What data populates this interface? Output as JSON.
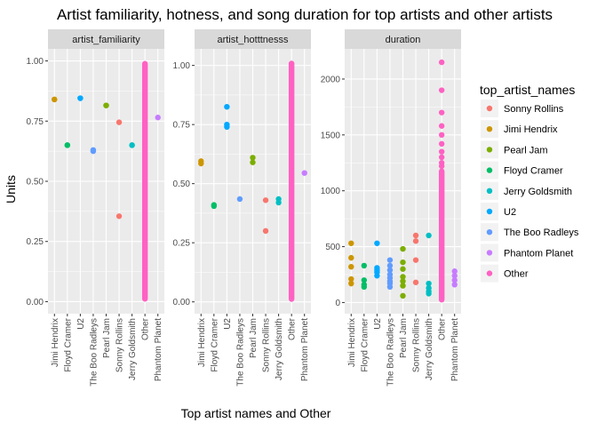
{
  "chart_data": {
    "type": "scatter",
    "title": "Artist familiarity, hotness, and song duration for top artists and other artists",
    "xlabel": "Top artist names and Other",
    "ylabel": "Units",
    "categories": [
      "Jimi Hendrix",
      "Floyd Cramer",
      "U2",
      "The Boo Radleys",
      "Pearl Jam",
      "Sonny Rollins",
      "Jerry Goldsmith",
      "Other",
      "Phantom Planet"
    ],
    "legend": {
      "title": "top_artist_names",
      "placement": "right",
      "entries": [
        {
          "name": "Sonny Rollins",
          "color": "#F8766D"
        },
        {
          "name": "Jimi Hendrix",
          "color": "#CD9600"
        },
        {
          "name": "Pearl Jam",
          "color": "#7CAE00"
        },
        {
          "name": "Floyd Cramer",
          "color": "#00BE67"
        },
        {
          "name": "Jerry Goldsmith",
          "color": "#00BFC4"
        },
        {
          "name": "U2",
          "color": "#00A9FF"
        },
        {
          "name": "The Boo Radleys",
          "color": "#619CFF"
        },
        {
          "name": "Phantom Planet",
          "color": "#C77CFF"
        },
        {
          "name": "Other",
          "color": "#FF61C3"
        }
      ]
    },
    "grid": true,
    "facets": [
      {
        "label": "artist_familiarity",
        "ylim": [
          -0.05,
          1.05
        ],
        "yticks": [
          0.0,
          0.25,
          0.5,
          0.75,
          1.0
        ],
        "ytick_labels": [
          "0.00",
          "0.25",
          "0.50",
          "0.75",
          "1.00"
        ],
        "series": [
          {
            "name": "Jimi Hendrix",
            "values": [
              0.84,
              0.84
            ]
          },
          {
            "name": "Floyd Cramer",
            "values": [
              0.65,
              0.65
            ]
          },
          {
            "name": "U2",
            "values": [
              0.845,
              0.845
            ]
          },
          {
            "name": "The Boo Radleys",
            "values": [
              0.63,
              0.625
            ]
          },
          {
            "name": "Pearl Jam",
            "values": [
              0.815,
              0.815
            ]
          },
          {
            "name": "Sonny Rollins",
            "values": [
              0.745,
              0.355
            ]
          },
          {
            "name": "Jerry Goldsmith",
            "values": [
              0.65,
              0.65
            ]
          },
          {
            "name": "Phantom Planet",
            "values": [
              0.765
            ]
          }
        ],
        "other_range": [
          0.0,
          1.0
        ]
      },
      {
        "label": "artist_hotttnesss",
        "ylim": [
          -0.05,
          1.07
        ],
        "yticks": [
          0.0,
          0.25,
          0.5,
          0.75,
          1.0
        ],
        "ytick_labels": [
          "0.00",
          "0.25",
          "0.50",
          "0.75",
          "1.00"
        ],
        "series": [
          {
            "name": "Jimi Hendrix",
            "values": [
              0.585,
              0.595
            ]
          },
          {
            "name": "Floyd Cramer",
            "values": [
              0.41,
              0.405
            ]
          },
          {
            "name": "U2",
            "values": [
              0.825,
              0.75,
              0.74
            ]
          },
          {
            "name": "The Boo Radleys",
            "values": [
              0.435
            ]
          },
          {
            "name": "Pearl Jam",
            "values": [
              0.61,
              0.59
            ]
          },
          {
            "name": "Sonny Rollins",
            "values": [
              0.43,
              0.3
            ]
          },
          {
            "name": "Jerry Goldsmith",
            "values": [
              0.435,
              0.42
            ]
          },
          {
            "name": "Phantom Planet",
            "values": [
              0.545
            ]
          }
        ],
        "other_range": [
          0.0,
          1.02
        ]
      },
      {
        "label": "duration",
        "ylim": [
          -100,
          2270
        ],
        "yticks": [
          0,
          500,
          1000,
          1500,
          2000
        ],
        "ytick_labels": [
          "0",
          "500",
          "1000",
          "1500",
          "2000"
        ],
        "series": [
          {
            "name": "Jimi Hendrix",
            "values": [
              530,
              400,
              320,
              210,
              170
            ]
          },
          {
            "name": "Floyd Cramer",
            "values": [
              330,
              200,
              160,
              140
            ]
          },
          {
            "name": "U2",
            "values": [
              530,
              310,
              290,
              270,
              240
            ]
          },
          {
            "name": "The Boo Radleys",
            "values": [
              380,
              330,
              290,
              250,
              220,
              190,
              170,
              140
            ]
          },
          {
            "name": "Pearl Jam",
            "values": [
              480,
              360,
              300,
              230,
              190,
              150,
              60
            ]
          },
          {
            "name": "Sonny Rollins",
            "values": [
              600,
              550,
              380,
              180
            ]
          },
          {
            "name": "Jerry Goldsmith",
            "values": [
              600,
              170,
              130,
              100,
              80
            ]
          },
          {
            "name": "Other",
            "values": [
              2150,
              1900,
              1700,
              1580,
              1500,
              1420,
              1350,
              1300,
              1250,
              1220
            ]
          },
          {
            "name": "Phantom Planet",
            "values": [
              280,
              240,
              200,
              160
            ]
          }
        ],
        "other_range": [
          0,
          1200
        ]
      }
    ]
  }
}
